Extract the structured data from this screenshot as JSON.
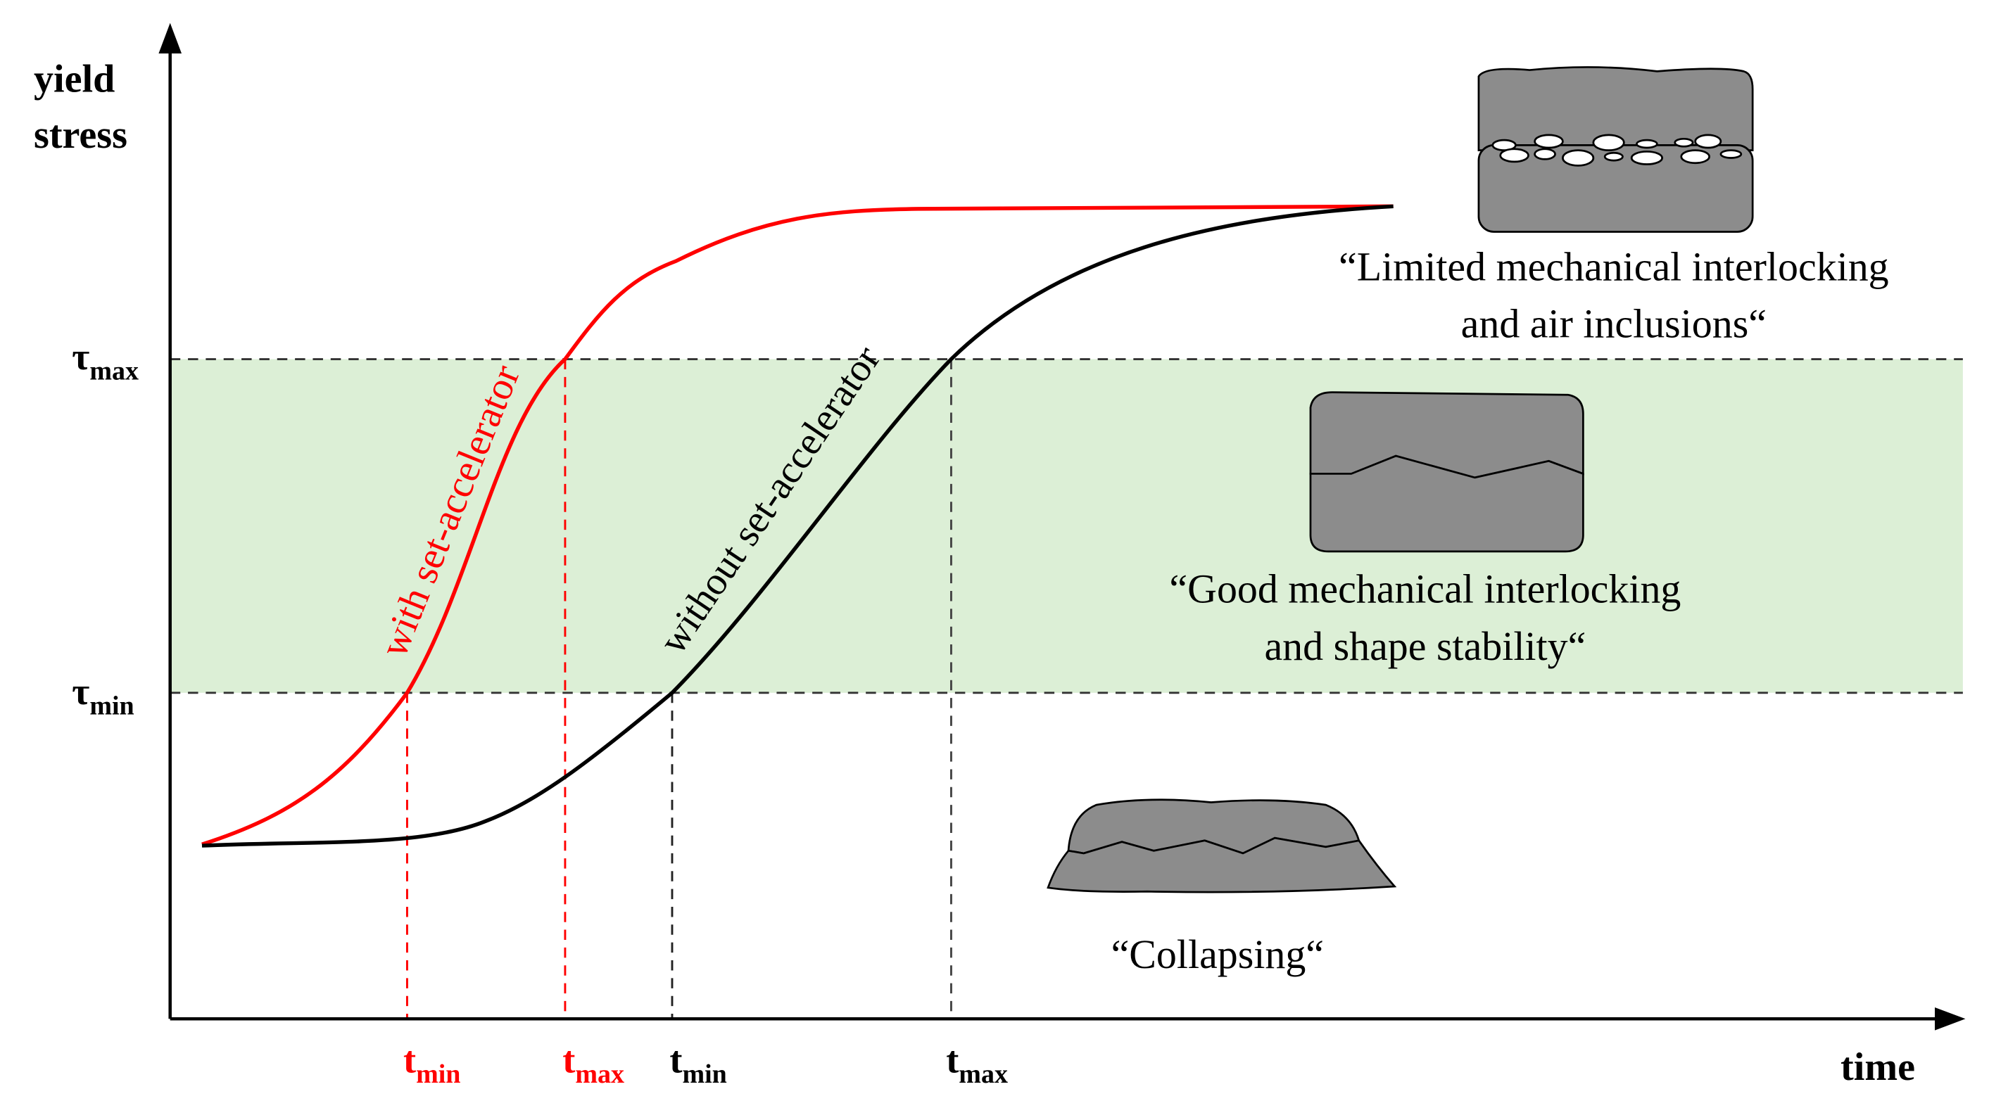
{
  "y_axis": {
    "label_lines": [
      "yield",
      "stress"
    ]
  },
  "x_axis": {
    "label": "time"
  },
  "levels": [
    {
      "symbol": "τ",
      "subscript": "max"
    },
    {
      "symbol": "τ",
      "subscript": "min"
    }
  ],
  "time_marks": [
    {
      "symbol": "t",
      "subscript": "min",
      "curve": "with set-accelerator"
    },
    {
      "symbol": "t",
      "subscript": "max",
      "curve": "with set-accelerator"
    },
    {
      "symbol": "t",
      "subscript": "min",
      "curve": "without set-accelerator"
    },
    {
      "symbol": "t",
      "subscript": "max",
      "curve": "without set-accelerator"
    }
  ],
  "curves": [
    {
      "label": "with set-accelerator",
      "color": "#ff0000"
    },
    {
      "label": "without set-accelerator",
      "color": "#000000"
    }
  ],
  "regions": [
    {
      "caption_lines": [
        "“Limited mechanical interlocking",
        "and air inclusions“"
      ]
    },
    {
      "caption_lines": [
        "“Good mechanical interlocking",
        "and shape stability“"
      ]
    },
    {
      "caption_lines": [
        "“Collapsing“"
      ]
    }
  ]
}
